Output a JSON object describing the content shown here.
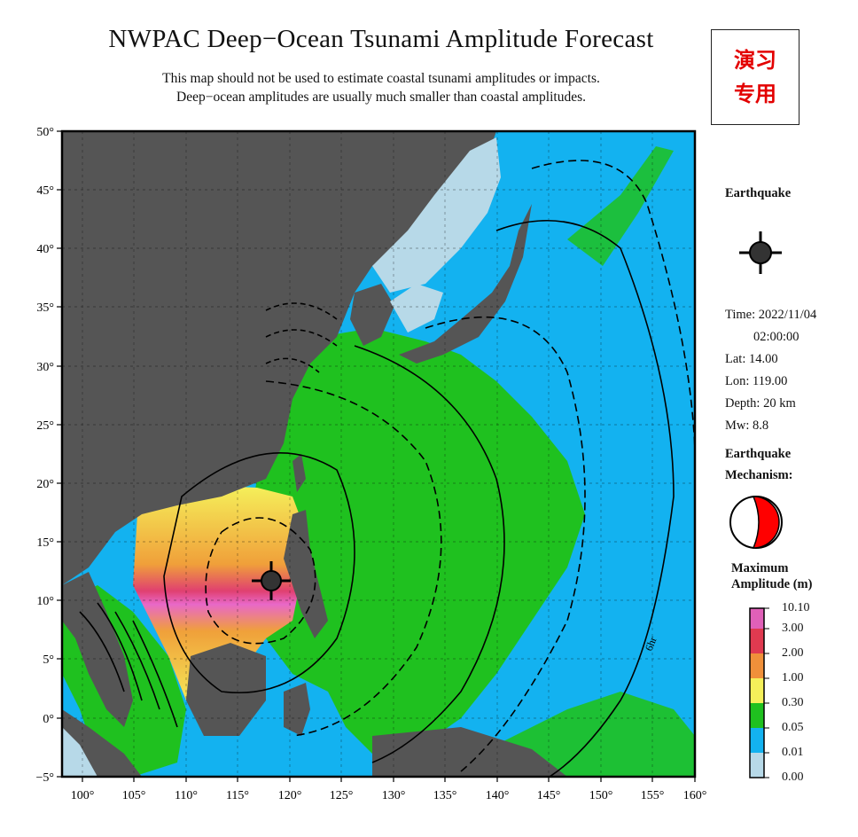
{
  "title": "NWPAC Deep−Ocean Tsunami Amplitude Forecast",
  "subtitle_lines": [
    "This map should not be used to estimate coastal tsunami amplitudes or impacts.",
    "Deep−ocean amplitudes are usually much smaller than coastal amplitudes."
  ],
  "stamp": {
    "line1": "演习",
    "line2": "专用",
    "color": "#e30000"
  },
  "map": {
    "lon_range": [
      99,
      160
    ],
    "lat_range": [
      -5,
      50
    ],
    "lon_ticks": [
      "100°",
      "105°",
      "110°",
      "115°",
      "120°",
      "125°",
      "130°",
      "135°",
      "140°",
      "145°",
      "150°",
      "155°",
      "160°"
    ],
    "lat_ticks": [
      "50°",
      "45°",
      "40°",
      "35°",
      "30°",
      "25°",
      "20°",
      "15°",
      "10°",
      "5°",
      "0°",
      "−5°"
    ],
    "contour_label": "6hr",
    "colors": {
      "land": "#555555",
      "shallow": "#b7d9e8",
      "blue": "#13b2f0",
      "green": "#1fc11f",
      "yellow": "#f5f05a",
      "orange": "#f0a03a",
      "red": "#e24040",
      "pink": "#e84ca8"
    }
  },
  "epicenter": {
    "lon": 119.0,
    "lat": 14.0,
    "symbol": "crosshair-icon"
  },
  "earthquake": {
    "heading": "Earthquake",
    "time_label": "Time: 2022/11/04",
    "time_clock": "02:00:00",
    "lat": "Lat: 14.00",
    "lon": "Lon: 119.00",
    "depth": "Depth: 20 km",
    "mw": "Mw: 8.8"
  },
  "mechanism": {
    "heading_line1": "Earthquake",
    "heading_line2": "Mechanism:",
    "fill": "#ff0000"
  },
  "legend": {
    "heading_line1": "Maximum",
    "heading_line2": "Amplitude (m)",
    "ticks": [
      "10.10",
      "3.00",
      "2.00",
      "1.00",
      "0.30",
      "0.05",
      "0.01",
      "0.00"
    ],
    "bands": [
      "#e060b8",
      "#e03a50",
      "#f0903a",
      "#f5f05a",
      "#1fc11f",
      "#13b2f0",
      "#b7d9e8"
    ]
  }
}
